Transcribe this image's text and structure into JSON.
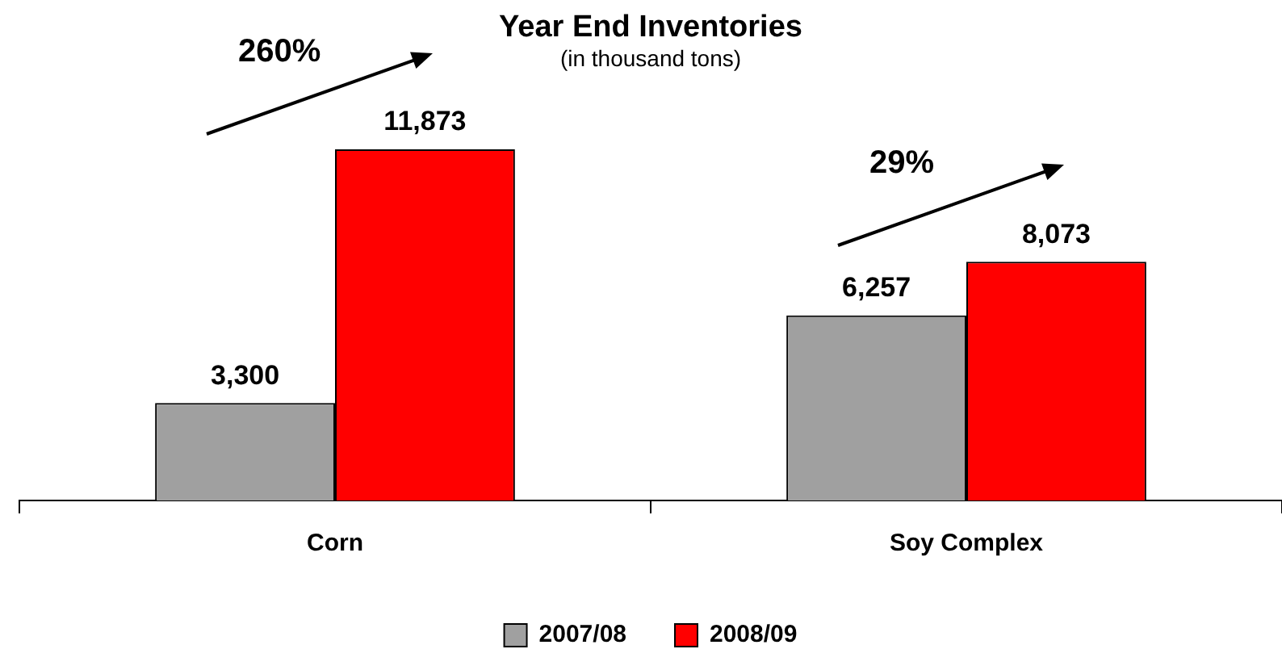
{
  "chart_data": {
    "type": "bar",
    "title": "Year End Inventories",
    "subtitle": "(in thousand tons)",
    "categories": [
      "Corn",
      "Soy Complex"
    ],
    "series": [
      {
        "name": "2007/08",
        "color": "#a0a0a0",
        "values": [
          3300,
          6257
        ],
        "value_labels": [
          "3,300",
          "6,257"
        ]
      },
      {
        "name": "2008/09",
        "color": "#ff0000",
        "values": [
          11873,
          8073
        ],
        "value_labels": [
          "11,873",
          "8,073"
        ]
      }
    ],
    "legend": "bottom",
    "grid": false,
    "tick_labels": "x",
    "annotations": [
      "260%",
      "29%"
    ]
  }
}
